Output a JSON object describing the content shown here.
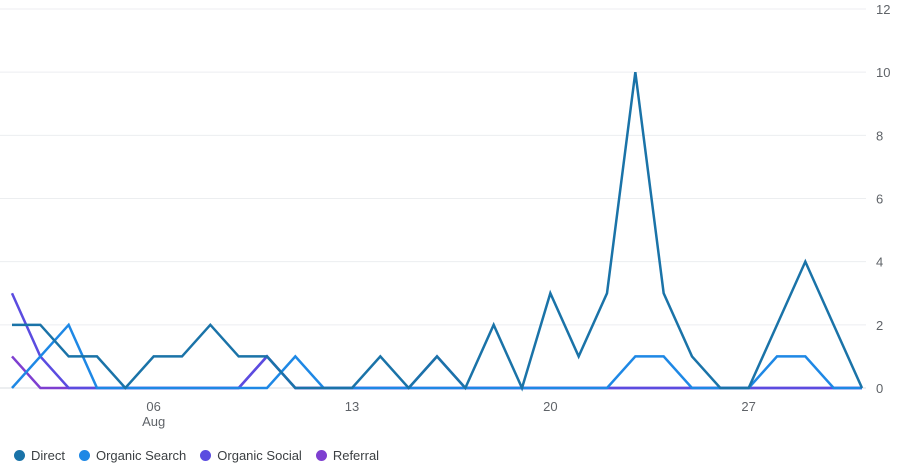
{
  "chart_data": {
    "type": "line",
    "x": [
      1,
      2,
      3,
      4,
      5,
      6,
      7,
      8,
      9,
      10,
      11,
      12,
      13,
      14,
      15,
      16,
      17,
      18,
      19,
      20,
      21,
      22,
      23,
      24,
      25,
      26,
      27,
      28,
      29,
      30,
      31
    ],
    "xticks": [
      {
        "x": 6,
        "label": "06",
        "sub": "Aug"
      },
      {
        "x": 13,
        "label": "13",
        "sub": ""
      },
      {
        "x": 20,
        "label": "20",
        "sub": ""
      },
      {
        "x": 27,
        "label": "27",
        "sub": ""
      }
    ],
    "yticks": [
      {
        "value": 0,
        "label": "0"
      },
      {
        "value": 2,
        "label": "2"
      },
      {
        "value": 4,
        "label": "4"
      },
      {
        "value": 6,
        "label": "6"
      },
      {
        "value": 8,
        "label": "8"
      },
      {
        "value": 10,
        "label": "10"
      },
      {
        "value": 12,
        "label": "12"
      }
    ],
    "ylim": [
      0,
      12
    ],
    "grid": true,
    "legend_position": "bottom-left",
    "series": [
      {
        "name": "Direct",
        "color": "#1a73a8",
        "values": [
          2,
          2,
          1,
          1,
          0,
          1,
          1,
          2,
          1,
          1,
          0,
          0,
          0,
          1,
          0,
          1,
          0,
          2,
          0,
          3,
          1,
          3,
          10,
          3,
          1,
          0,
          0,
          2,
          4,
          2,
          0
        ]
      },
      {
        "name": "Organic Search",
        "color": "#1e88e5",
        "values": [
          0,
          1,
          2,
          0,
          0,
          0,
          0,
          0,
          0,
          0,
          1,
          0,
          0,
          0,
          0,
          0,
          0,
          0,
          0,
          0,
          0,
          0,
          1,
          1,
          0,
          0,
          0,
          1,
          1,
          0,
          0
        ]
      },
      {
        "name": "Organic Social",
        "color": "#5b4ce0",
        "values": [
          3,
          1,
          0,
          0,
          0,
          0,
          0,
          0,
          0,
          1,
          0,
          0,
          0,
          0,
          0,
          1,
          0,
          0,
          0,
          0,
          0,
          0,
          0,
          0,
          0,
          0,
          0,
          0,
          0,
          0,
          0
        ]
      },
      {
        "name": "Referral",
        "color": "#7e3fd0",
        "values": [
          1,
          0,
          0,
          0,
          0,
          0,
          0,
          0,
          0,
          1,
          0,
          0,
          0,
          0,
          0,
          0,
          0,
          0,
          0,
          0,
          0,
          0,
          0,
          0,
          0,
          0,
          0,
          0,
          0,
          0,
          0
        ]
      }
    ]
  }
}
